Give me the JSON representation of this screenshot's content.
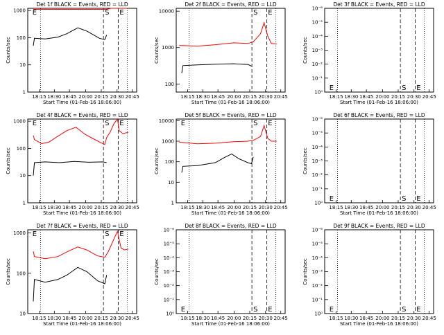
{
  "chart_data": [
    {
      "type": "line",
      "title": "Det 1f BLACK = Events, RED = LLD",
      "xlabel": "Start Time (01-Feb-16 18:06:00)",
      "ylabel": "Counts/sec",
      "scale": "log",
      "xlim": [
        18.0,
        20.833
      ],
      "x_ticks": [
        "18:15",
        "18:30",
        "18:45",
        "20:00",
        "20:15",
        "20:30",
        "20:45"
      ],
      "y_ticks": [
        "1",
        "10",
        "100",
        "1000"
      ],
      "ylim": [
        1,
        1200
      ],
      "markers": [
        "E",
        "S",
        "E"
      ],
      "series": [
        {
          "color": "#000000",
          "points": [
            [
              18.07,
              50
            ],
            [
              18.1,
              95
            ],
            [
              18.4,
              90
            ],
            [
              18.75,
              105
            ],
            [
              19.0,
              140
            ],
            [
              19.3,
              230
            ],
            [
              19.55,
              175
            ],
            [
              19.9,
              95
            ],
            [
              20.05,
              85
            ],
            [
              20.1,
              125
            ]
          ]
        },
        {
          "color": "#ff0000",
          "points": [
            [
              18.07,
              1100
            ],
            [
              20.1,
              1100
            ],
            [
              20.22,
              1200
            ],
            [
              20.5,
              1200
            ],
            [
              20.7,
              1200
            ]
          ]
        }
      ]
    },
    {
      "type": "line",
      "title": "Det 2f BLACK = Events, RED = LLD",
      "xlabel": "Start Time (01-Feb-16 18:06:00)",
      "ylabel": "Counts/sec",
      "scale": "log",
      "xlim": [
        18.0,
        20.833
      ],
      "x_ticks": [
        "18:15",
        "18:30",
        "18:45",
        "20:00",
        "20:15",
        "20:30",
        "20:45"
      ],
      "y_ticks": [
        "100",
        "1000",
        "10000"
      ],
      "ylim": [
        60,
        12000
      ],
      "markers": [
        "S",
        "E"
      ],
      "series": [
        {
          "color": "#000000",
          "points": [
            [
              18.07,
              200
            ],
            [
              18.1,
              320
            ],
            [
              18.5,
              335
            ],
            [
              19.0,
              350
            ],
            [
              19.5,
              360
            ],
            [
              19.9,
              345
            ],
            [
              20.0,
              310
            ]
          ]
        },
        {
          "color": "#ff0000",
          "points": [
            [
              18.0,
              1150
            ],
            [
              18.5,
              1100
            ],
            [
              19.0,
              1200
            ],
            [
              19.5,
              1350
            ],
            [
              19.9,
              1300
            ],
            [
              20.05,
              1450
            ],
            [
              20.25,
              2400
            ],
            [
              20.35,
              4800
            ],
            [
              20.45,
              2100
            ],
            [
              20.55,
              1300
            ],
            [
              20.7,
              1250
            ]
          ]
        }
      ]
    },
    {
      "type": "line",
      "title": "Det 3f BLACK = Events, RED = LLD",
      "xlabel": "Start Time (01-Feb-16 18:06:00)",
      "ylabel": "Counts/sec",
      "scale": "log",
      "xlim": [
        18.0,
        20.833
      ],
      "x_ticks": [
        "18:15",
        "18:30",
        "18:45",
        "20:00",
        "20:15",
        "20:30",
        "20:45"
      ],
      "y_ticks": [
        "10⁰",
        "10⁻¹",
        "10⁻²",
        "10⁻³",
        "10⁻⁴",
        "10⁻⁵",
        "10⁻⁶"
      ],
      "ylim": [
        1e-06,
        1
      ],
      "markers": [
        "E",
        "S",
        "E"
      ],
      "series": []
    },
    {
      "type": "line",
      "title": "Det 4f BLACK = Events, RED = LLD",
      "xlabel": "Start Time (01-Feb-16 18:06:00)",
      "ylabel": "Counts/sec",
      "scale": "log",
      "xlim": [
        18.0,
        20.833
      ],
      "x_ticks": [
        "18:15",
        "18:30",
        "18:45",
        "20:00",
        "20:15",
        "20:30",
        "20:45"
      ],
      "y_ticks": [
        "1",
        "10",
        "100",
        "1000"
      ],
      "ylim": [
        1,
        1200
      ],
      "markers": [
        "E",
        "S",
        "E"
      ],
      "series": [
        {
          "color": "#000000",
          "points": [
            [
              18.07,
              10
            ],
            [
              18.1,
              30
            ],
            [
              18.4,
              32
            ],
            [
              18.8,
              30
            ],
            [
              19.2,
              33
            ],
            [
              19.6,
              31
            ],
            [
              20.0,
              32
            ],
            [
              20.1,
              30
            ]
          ]
        },
        {
          "color": "#ff0000",
          "points": [
            [
              18.07,
              300
            ],
            [
              18.1,
              210
            ],
            [
              18.3,
              150
            ],
            [
              18.5,
              170
            ],
            [
              18.75,
              280
            ],
            [
              19.0,
              450
            ],
            [
              19.25,
              600
            ],
            [
              19.5,
              330
            ],
            [
              19.75,
              220
            ],
            [
              19.95,
              160
            ],
            [
              20.05,
              140
            ],
            [
              20.1,
              250
            ],
            [
              20.2,
              400
            ],
            [
              20.3,
              800
            ],
            [
              20.4,
              1200
            ],
            [
              20.45,
              450
            ],
            [
              20.55,
              350
            ],
            [
              20.7,
              390
            ]
          ]
        }
      ]
    },
    {
      "type": "line",
      "title": "Det 5f BLACK = Events, RED = LLD",
      "xlabel": "Start Time (01-Feb-16 18:06:00)",
      "ylabel": "Counts/sec",
      "scale": "log",
      "xlim": [
        18.0,
        20.833
      ],
      "x_ticks": [
        "18:15",
        "18:30",
        "18:45",
        "20:00",
        "20:15",
        "20:30",
        "20:45"
      ],
      "y_ticks": [
        "1",
        "10",
        "100",
        "1000",
        "10000"
      ],
      "ylim": [
        1,
        12000
      ],
      "markers": [
        "E",
        "S",
        "E"
      ],
      "series": [
        {
          "color": "#000000",
          "points": [
            [
              18.07,
              30
            ],
            [
              18.1,
              60
            ],
            [
              18.5,
              65
            ],
            [
              19.0,
              90
            ],
            [
              19.25,
              160
            ],
            [
              19.45,
              240
            ],
            [
              19.65,
              140
            ],
            [
              19.9,
              90
            ],
            [
              20.0,
              80
            ],
            [
              20.05,
              170
            ]
          ]
        },
        {
          "color": "#ff0000",
          "points": [
            [
              18.0,
              900
            ],
            [
              18.5,
              750
            ],
            [
              19.0,
              800
            ],
            [
              19.5,
              950
            ],
            [
              19.9,
              1000
            ],
            [
              20.05,
              1100
            ],
            [
              20.25,
              1700
            ],
            [
              20.35,
              5800
            ],
            [
              20.45,
              1400
            ],
            [
              20.55,
              1000
            ],
            [
              20.7,
              1000
            ]
          ]
        }
      ]
    },
    {
      "type": "line",
      "title": "Det 6f BLACK = Events, RED = LLD",
      "xlabel": "Start Time (01-Feb-16 18:06:00)",
      "ylabel": "Counts/sec",
      "scale": "log",
      "xlim": [
        18.0,
        20.833
      ],
      "x_ticks": [
        "18:15",
        "18:30",
        "18:45",
        "20:00",
        "20:15",
        "20:30",
        "20:45"
      ],
      "y_ticks": [
        "10⁰",
        "10⁻¹",
        "10⁻²",
        "10⁻³",
        "10⁻⁴",
        "10⁻⁵",
        "10⁻⁶"
      ],
      "ylim": [
        1e-06,
        1
      ],
      "markers": [
        "E",
        "S",
        "E"
      ],
      "series": []
    },
    {
      "type": "line",
      "title": "Det 7f BLACK = Events, RED = LLD",
      "xlabel": "Start Time (01-Feb-16 18:06:00)",
      "ylabel": "Counts/sec",
      "scale": "log",
      "xlim": [
        18.0,
        20.833
      ],
      "x_ticks": [
        "18:15",
        "18:30",
        "18:45",
        "20:00",
        "20:15",
        "20:30",
        "20:45"
      ],
      "y_ticks": [
        "10",
        "100",
        "1000"
      ],
      "ylim": [
        10,
        1200
      ],
      "markers": [
        "E",
        "S",
        "E"
      ],
      "series": [
        {
          "color": "#000000",
          "points": [
            [
              18.07,
              20
            ],
            [
              18.1,
              70
            ],
            [
              18.4,
              60
            ],
            [
              18.75,
              70
            ],
            [
              19.0,
              90
            ],
            [
              19.3,
              140
            ],
            [
              19.55,
              110
            ],
            [
              19.85,
              65
            ],
            [
              20.05,
              55
            ],
            [
              20.1,
              90
            ]
          ]
        },
        {
          "color": "#ff0000",
          "points": [
            [
              18.07,
              350
            ],
            [
              18.1,
              260
            ],
            [
              18.4,
              230
            ],
            [
              18.75,
              260
            ],
            [
              19.0,
              340
            ],
            [
              19.3,
              450
            ],
            [
              19.55,
              380
            ],
            [
              19.85,
              270
            ],
            [
              20.05,
              250
            ],
            [
              20.15,
              350
            ],
            [
              20.3,
              700
            ],
            [
              20.4,
              1100
            ],
            [
              20.5,
              420
            ],
            [
              20.6,
              380
            ],
            [
              20.7,
              400
            ]
          ]
        }
      ]
    },
    {
      "type": "line",
      "title": "Det 8f BLACK = Events, RED = LLD",
      "xlabel": "Start Time (01-Feb-16 18:06:00)",
      "ylabel": "Counts/sec",
      "scale": "log",
      "xlim": [
        18.0,
        20.833
      ],
      "x_ticks": [
        "18:15",
        "18:30",
        "18:45",
        "20:00",
        "20:15",
        "20:30",
        "20:45"
      ],
      "y_ticks": [
        "10⁰",
        "10⁻¹",
        "10⁻²",
        "10⁻³",
        "10⁻⁴",
        "10⁻⁵",
        "10⁻⁶"
      ],
      "ylim": [
        1e-06,
        1
      ],
      "markers": [
        "E",
        "S",
        "E"
      ],
      "series": []
    },
    {
      "type": "line",
      "title": "Det 9f BLACK = Events, RED = LLD",
      "xlabel": "Start Time (01-Feb-16 18:06:00)",
      "ylabel": "Counts/sec",
      "scale": "log",
      "xlim": [
        18.0,
        20.833
      ],
      "x_ticks": [
        "18:15",
        "18:30",
        "18:45",
        "20:00",
        "20:15",
        "20:30",
        "20:45"
      ],
      "y_ticks": [
        "10⁰",
        "10⁻¹",
        "10⁻²",
        "10⁻³",
        "10⁻⁴",
        "10⁻⁵",
        "10⁻⁶"
      ],
      "ylim": [
        1e-06,
        1
      ],
      "markers": [
        "E",
        "S",
        "E"
      ],
      "series": []
    }
  ]
}
